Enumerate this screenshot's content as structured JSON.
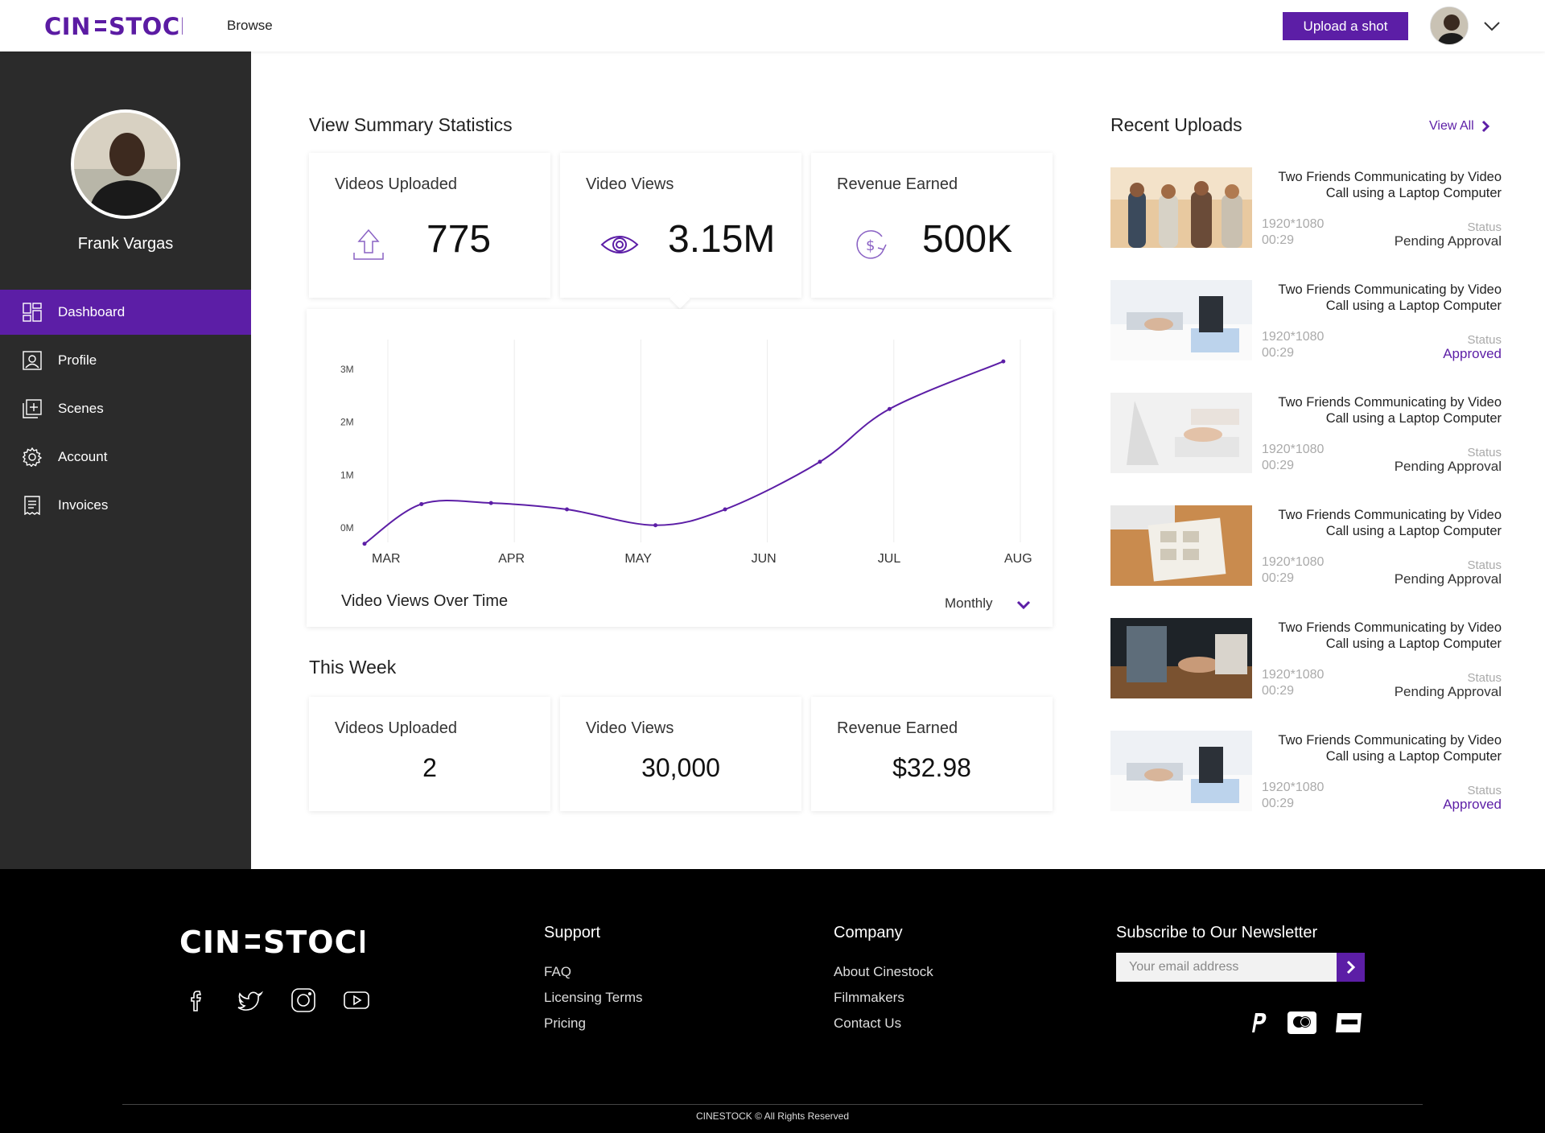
{
  "header": {
    "logo": "CIN=STOCK",
    "browse_label": "Browse",
    "upload_label": "Upload a shot",
    "accent": "#5c1ea6"
  },
  "sidebar": {
    "user_name": "Frank Vargas",
    "items": [
      {
        "label": "Dashboard",
        "icon": "dashboard-icon",
        "active": true
      },
      {
        "label": "Profile",
        "icon": "profile-icon",
        "active": false
      },
      {
        "label": "Scenes",
        "icon": "scenes-icon",
        "active": false
      },
      {
        "label": "Account",
        "icon": "gear-icon",
        "active": false
      },
      {
        "label": "Invoices",
        "icon": "invoice-icon",
        "active": false
      }
    ]
  },
  "summary": {
    "title": "View Summary Statistics",
    "cards": [
      {
        "label": "Videos Uploaded",
        "value": "775",
        "icon": "upload-icon"
      },
      {
        "label": "Video Views",
        "value": "3.15M",
        "icon": "eye-icon"
      },
      {
        "label": "Revenue Earned",
        "value": "500K",
        "icon": "revenue-icon"
      }
    ]
  },
  "chart_data": {
    "type": "line",
    "title": "Video Views Over Time",
    "period": "Monthly",
    "categories": [
      "MAR",
      "APR",
      "MAY",
      "JUN",
      "JUL",
      "AUG"
    ],
    "x": [
      0,
      0.45,
      1.0,
      1.6,
      2.3,
      2.85,
      3.6,
      4.15,
      5.05
    ],
    "y": [
      -0.3,
      0.45,
      0.47,
      0.35,
      0.05,
      0.35,
      1.25,
      2.25,
      3.15
    ],
    "yticks": [
      "0M",
      "1M",
      "2M",
      "3M"
    ],
    "ylim": [
      0,
      3
    ],
    "grid": true,
    "line_color": "#5c1ea6"
  },
  "week": {
    "title": "This Week",
    "cards": [
      {
        "label": "Videos Uploaded",
        "value": "2"
      },
      {
        "label": "Video Views",
        "value": "30,000"
      },
      {
        "label": "Revenue Earned",
        "value": "$32.98"
      }
    ]
  },
  "recent": {
    "title": "Recent Uploads",
    "view_all": "View All",
    "status_label": "Status",
    "items": [
      {
        "title": "Two Friends Communicating by Video Call using a Laptop Computer",
        "resolution": "1920*1080",
        "duration": "00:29",
        "status": "Pending Approval",
        "approved": false
      },
      {
        "title": "Two Friends Communicating by Video Call using a Laptop Computer",
        "resolution": "1920*1080",
        "duration": "00:29",
        "status": "Approved",
        "approved": true
      },
      {
        "title": "Two Friends Communicating by Video Call using a Laptop Computer",
        "resolution": "1920*1080",
        "duration": "00:29",
        "status": "Pending Approval",
        "approved": false
      },
      {
        "title": "Two Friends Communicating by Video Call using a Laptop Computer",
        "resolution": "1920*1080",
        "duration": "00:29",
        "status": "Pending Approval",
        "approved": false
      },
      {
        "title": "Two Friends Communicating by Video Call using a Laptop Computer",
        "resolution": "1920*1080",
        "duration": "00:29",
        "status": "Pending Approval",
        "approved": false
      },
      {
        "title": "Two Friends Communicating by Video Call using a Laptop Computer",
        "resolution": "1920*1080",
        "duration": "00:29",
        "status": "Approved",
        "approved": true
      }
    ]
  },
  "footer": {
    "logo": "CIN=STOCK",
    "socials": [
      "facebook-icon",
      "twitter-icon",
      "instagram-icon",
      "youtube-icon"
    ],
    "support": {
      "title": "Support",
      "links": [
        "FAQ",
        "Licensing Terms",
        "Pricing"
      ]
    },
    "company": {
      "title": "Company",
      "links": [
        "About Cinestock",
        "Filmmakers",
        "Contact Us"
      ]
    },
    "newsletter": {
      "title": "Subscribe to Our Newsletter",
      "placeholder": "Your email address"
    },
    "payments": [
      "paypal-icon",
      "mastercard-icon",
      "unionpay-icon"
    ],
    "copyright": "CINESTOCK © All Rights Reserved"
  }
}
